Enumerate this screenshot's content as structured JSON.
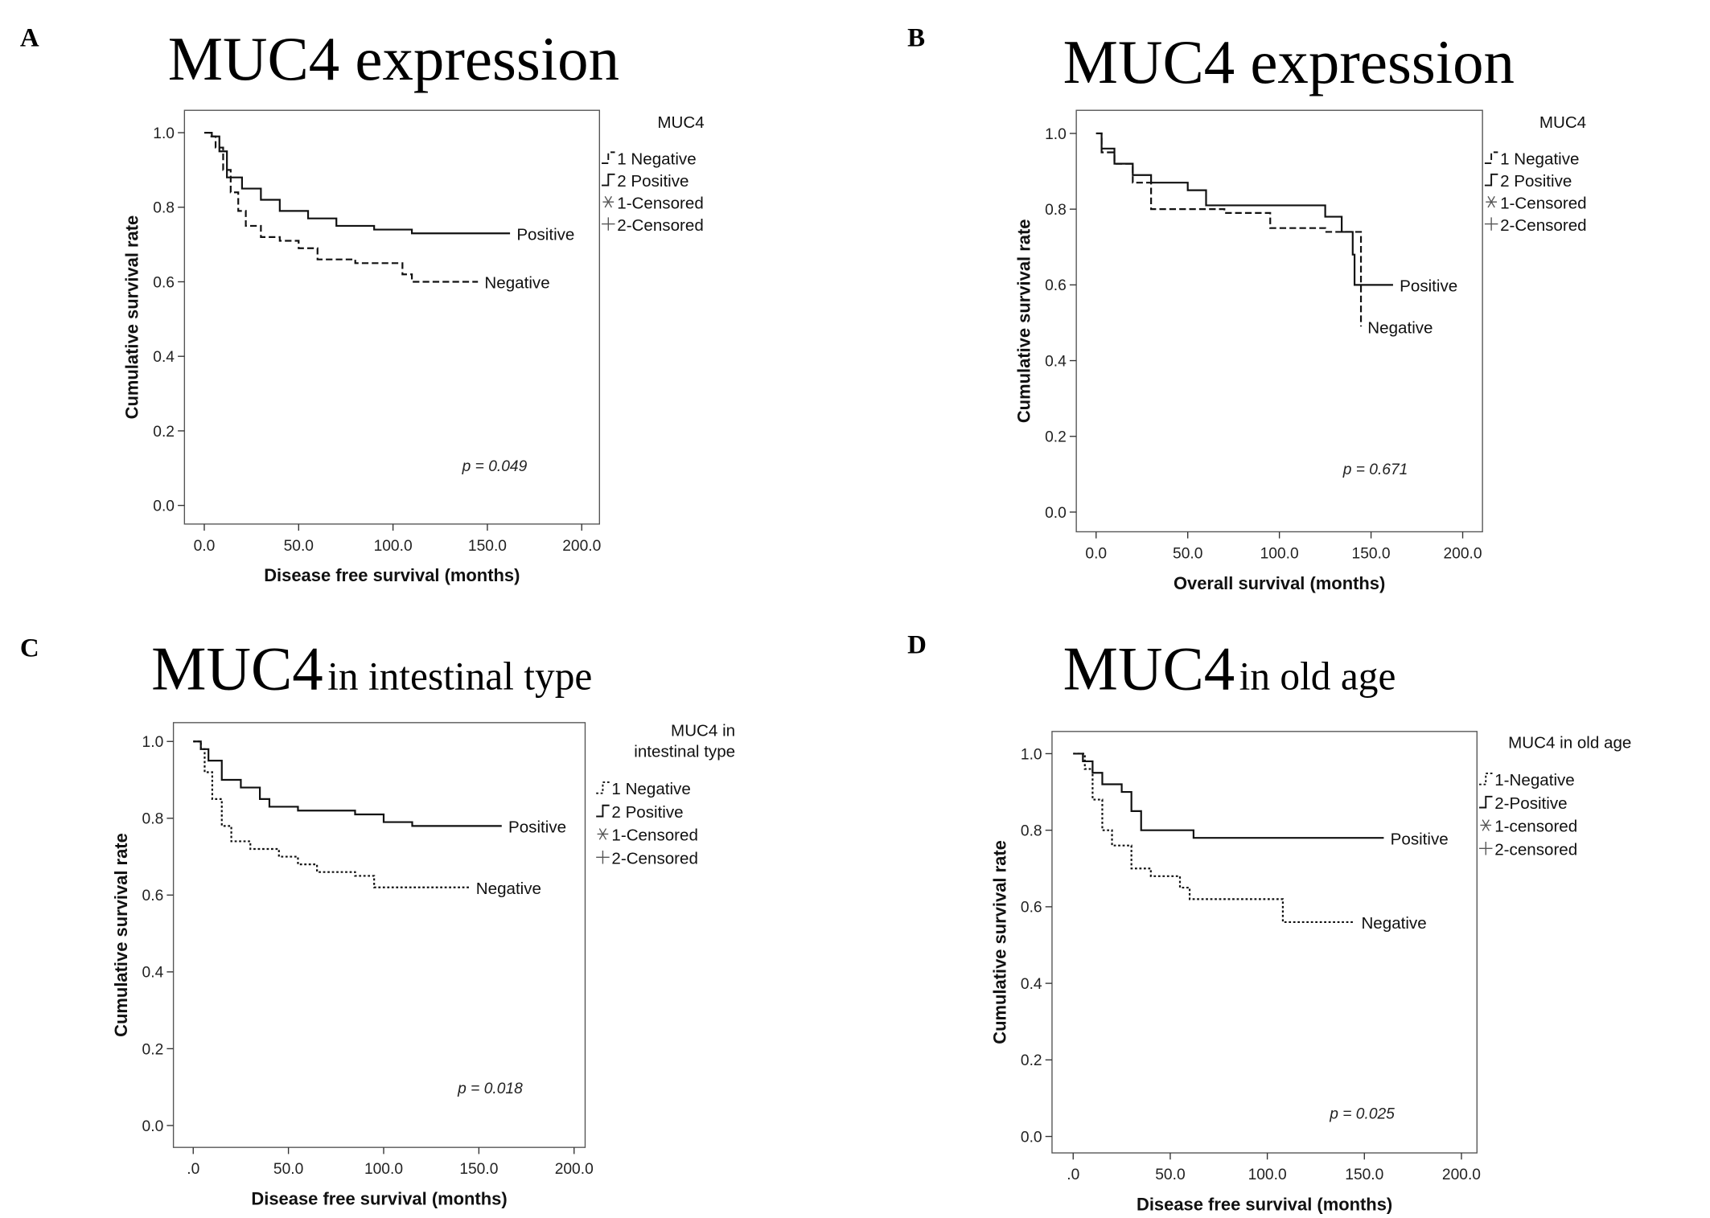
{
  "chart_data": [
    {
      "type": "line",
      "panel": "A",
      "title": "MUC4 expression",
      "xlabel": "Disease free survival (months)",
      "ylabel": "Cumulative survival rate",
      "xlim": [
        -10.5,
        209.4
      ],
      "ylim": [
        -0.05,
        1.06
      ],
      "xticks": [
        {
          "value": 0,
          "label": "0.0"
        },
        {
          "value": 50,
          "label": "50.0"
        },
        {
          "value": 100,
          "label": "100.0"
        },
        {
          "value": 150,
          "label": "150.0"
        },
        {
          "value": 200,
          "label": "200.0"
        }
      ],
      "yticks": [
        {
          "value": 0,
          "label": "0.0"
        },
        {
          "value": 0.2,
          "label": "0.2"
        },
        {
          "value": 0.4,
          "label": "0.4"
        },
        {
          "value": 0.6,
          "label": "0.6"
        },
        {
          "value": 0.8,
          "label": "0.8"
        },
        {
          "value": 1,
          "label": "1.0"
        }
      ],
      "legend_title": [
        "MUC4"
      ],
      "censored_labels": [
        "1-Censored",
        "2-Censored"
      ],
      "annotation": "p = 0.049",
      "series": [
        {
          "name": "1 Negative",
          "end_label": "Negative",
          "color": "#111",
          "style": "dashed",
          "x": [
            0,
            3,
            6,
            10,
            14,
            18,
            22,
            30,
            40,
            50,
            60,
            80,
            105,
            110,
            145
          ],
          "values": [
            1,
            0.99,
            0.96,
            0.9,
            0.84,
            0.79,
            0.75,
            0.72,
            0.71,
            0.69,
            0.66,
            0.65,
            0.62,
            0.6,
            0.6
          ]
        },
        {
          "name": "2 Positive",
          "end_label": "Positive",
          "color": "#111",
          "style": "solid",
          "x": [
            0,
            4,
            8,
            12,
            20,
            30,
            40,
            55,
            70,
            90,
            110,
            162
          ],
          "values": [
            1,
            0.99,
            0.95,
            0.88,
            0.85,
            0.82,
            0.79,
            0.77,
            0.75,
            0.74,
            0.73,
            0.73
          ]
        }
      ]
    },
    {
      "type": "line",
      "panel": "B",
      "title": "MUC4 expression",
      "xlabel": "Overall survival (months)",
      "ylabel": "Cumulative survival rate",
      "xlim": [
        -10.8,
        210.8
      ],
      "ylim": [
        -0.052,
        1.061
      ],
      "xticks": [
        {
          "value": 0,
          "label": "0.0"
        },
        {
          "value": 50,
          "label": "50.0"
        },
        {
          "value": 100,
          "label": "100.0"
        },
        {
          "value": 150,
          "label": "150.0"
        },
        {
          "value": 200,
          "label": "200.0"
        }
      ],
      "yticks": [
        {
          "value": 0,
          "label": "0.0"
        },
        {
          "value": 0.2,
          "label": "0.2"
        },
        {
          "value": 0.4,
          "label": "0.4"
        },
        {
          "value": 0.6,
          "label": "0.6"
        },
        {
          "value": 0.8,
          "label": "0.8"
        },
        {
          "value": 1,
          "label": "1.0"
        }
      ],
      "legend_title": [
        "MUC4"
      ],
      "censored_labels": [
        "1-Censored",
        "2-Censored"
      ],
      "annotation": "p = 0.671",
      "series": [
        {
          "name": "1 Negative",
          "end_label": "Negative",
          "color": "#111",
          "style": "dashed",
          "x": [
            0,
            3,
            10,
            20,
            30,
            70,
            95,
            125,
            144,
            144.5
          ],
          "values": [
            1,
            0.95,
            0.92,
            0.87,
            0.8,
            0.79,
            0.75,
            0.74,
            0.74,
            0.49
          ]
        },
        {
          "name": "2 Positive",
          "end_label": "Positive",
          "color": "#111",
          "style": "solid",
          "x": [
            0,
            3,
            10,
            20,
            30,
            50,
            60,
            110,
            125,
            134,
            140,
            141,
            162
          ],
          "values": [
            1,
            0.96,
            0.92,
            0.89,
            0.87,
            0.85,
            0.81,
            0.81,
            0.78,
            0.74,
            0.68,
            0.6,
            0.6
          ]
        }
      ]
    },
    {
      "type": "line",
      "panel": "C",
      "title": "MUC4",
      "title_rest": "in intestinal type",
      "xlabel": "Disease free survival (months)",
      "ylabel": "Cumulative survival rate",
      "xlim": [
        -10.4,
        205.8
      ],
      "ylim": [
        -0.057,
        1.049
      ],
      "xticks": [
        {
          "value": 0,
          "label": ".0"
        },
        {
          "value": 50,
          "label": "50.0"
        },
        {
          "value": 100,
          "label": "100.0"
        },
        {
          "value": 150,
          "label": "150.0"
        },
        {
          "value": 200,
          "label": "200.0"
        }
      ],
      "yticks": [
        {
          "value": 0,
          "label": "0.0"
        },
        {
          "value": 0.2,
          "label": "0.2"
        },
        {
          "value": 0.4,
          "label": "0.4"
        },
        {
          "value": 0.6,
          "label": "0.6"
        },
        {
          "value": 0.8,
          "label": "0.8"
        },
        {
          "value": 1,
          "label": "1.0"
        }
      ],
      "legend_title": [
        "MUC4 in",
        "intestinal type"
      ],
      "censored_labels": [
        "1-Censored",
        "2-Censored"
      ],
      "annotation": "p = 0.018",
      "series": [
        {
          "name": "1 Negative",
          "end_label": "Negative",
          "color": "#111",
          "style": "dotted",
          "x": [
            0,
            4,
            6,
            10,
            15,
            20,
            30,
            45,
            55,
            65,
            85,
            95,
            145
          ],
          "values": [
            1,
            0.98,
            0.92,
            0.85,
            0.78,
            0.74,
            0.72,
            0.7,
            0.68,
            0.66,
            0.65,
            0.62,
            0.62
          ]
        },
        {
          "name": "2 Positive",
          "end_label": "Positive",
          "color": "#111",
          "style": "solid",
          "x": [
            0,
            4,
            8,
            15,
            25,
            35,
            40,
            55,
            85,
            100,
            115,
            162
          ],
          "values": [
            1,
            0.98,
            0.95,
            0.9,
            0.88,
            0.85,
            0.83,
            0.82,
            0.81,
            0.79,
            0.78,
            0.78
          ]
        }
      ]
    },
    {
      "type": "line",
      "panel": "D",
      "title": "MUC4",
      "title_rest": "in old age",
      "xlabel": "Disease free survival (months)",
      "ylabel": "Cumulative survival rate",
      "xlim": [
        -10.9,
        208
      ],
      "ylim": [
        -0.043,
        1.058
      ],
      "xticks": [
        {
          "value": 0,
          "label": ".0"
        },
        {
          "value": 50,
          "label": "50.0"
        },
        {
          "value": 100,
          "label": "100.0"
        },
        {
          "value": 150,
          "label": "150.0"
        },
        {
          "value": 200,
          "label": "200.0"
        }
      ],
      "yticks": [
        {
          "value": 0,
          "label": "0.0"
        },
        {
          "value": 0.2,
          "label": "0.2"
        },
        {
          "value": 0.4,
          "label": "0.4"
        },
        {
          "value": 0.6,
          "label": "0.6"
        },
        {
          "value": 0.8,
          "label": "0.8"
        },
        {
          "value": 1,
          "label": "1.0"
        }
      ],
      "legend_title": [
        "MUC4 in old age"
      ],
      "censored_labels": [
        "1-censored",
        "2-censored"
      ],
      "annotation": "p = 0.025",
      "series": [
        {
          "name": "1-Negative",
          "end_label": "Negative",
          "color": "#111",
          "style": "dotted",
          "x": [
            0,
            6,
            10,
            15,
            20,
            30,
            40,
            55,
            60,
            105,
            108,
            145
          ],
          "values": [
            1,
            0.96,
            0.88,
            0.8,
            0.76,
            0.7,
            0.68,
            0.65,
            0.62,
            0.62,
            0.56,
            0.56
          ]
        },
        {
          "name": "2-Positive",
          "end_label": "Positive",
          "color": "#111",
          "style": "solid",
          "x": [
            0,
            5,
            10,
            15,
            25,
            30,
            35,
            60,
            62,
            160
          ],
          "values": [
            1,
            0.98,
            0.95,
            0.92,
            0.9,
            0.85,
            0.8,
            0.8,
            0.78,
            0.78
          ]
        }
      ]
    }
  ]
}
